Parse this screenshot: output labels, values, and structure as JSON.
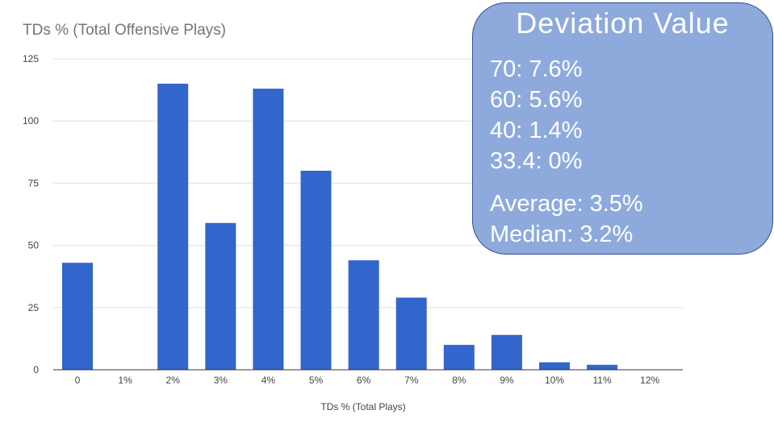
{
  "chart_data": {
    "type": "bar",
    "title": "TDs % (Total Offensive Plays)",
    "xlabel": "TDs % (Total Plays)",
    "ylabel": "",
    "categories": [
      "0",
      "1%",
      "2%",
      "3%",
      "4%",
      "5%",
      "6%",
      "7%",
      "8%",
      "9%",
      "10%",
      "11%",
      "12%"
    ],
    "values": [
      43,
      0,
      115,
      59,
      113,
      80,
      44,
      29,
      10,
      14,
      3,
      2,
      0
    ],
    "yticks": [
      0,
      25,
      50,
      75,
      100,
      125
    ],
    "ylim": [
      0,
      125
    ],
    "grid": true,
    "legend": "none",
    "colors": {
      "bar": "#3366cc",
      "grid": "#e0e0e0",
      "axis": "#333333",
      "tick_text": "#444444"
    }
  },
  "callout": {
    "title": "Deviation Value",
    "items": [
      "70: 7.6%",
      "60: 5.6%",
      "40: 1.4%",
      "33.4: 0%"
    ],
    "stats": [
      "Average: 3.5%",
      "Median: 3.2%"
    ],
    "colors": {
      "fill": "#8eaadc",
      "border": "#2f4f8f",
      "text": "#ffffff"
    }
  }
}
